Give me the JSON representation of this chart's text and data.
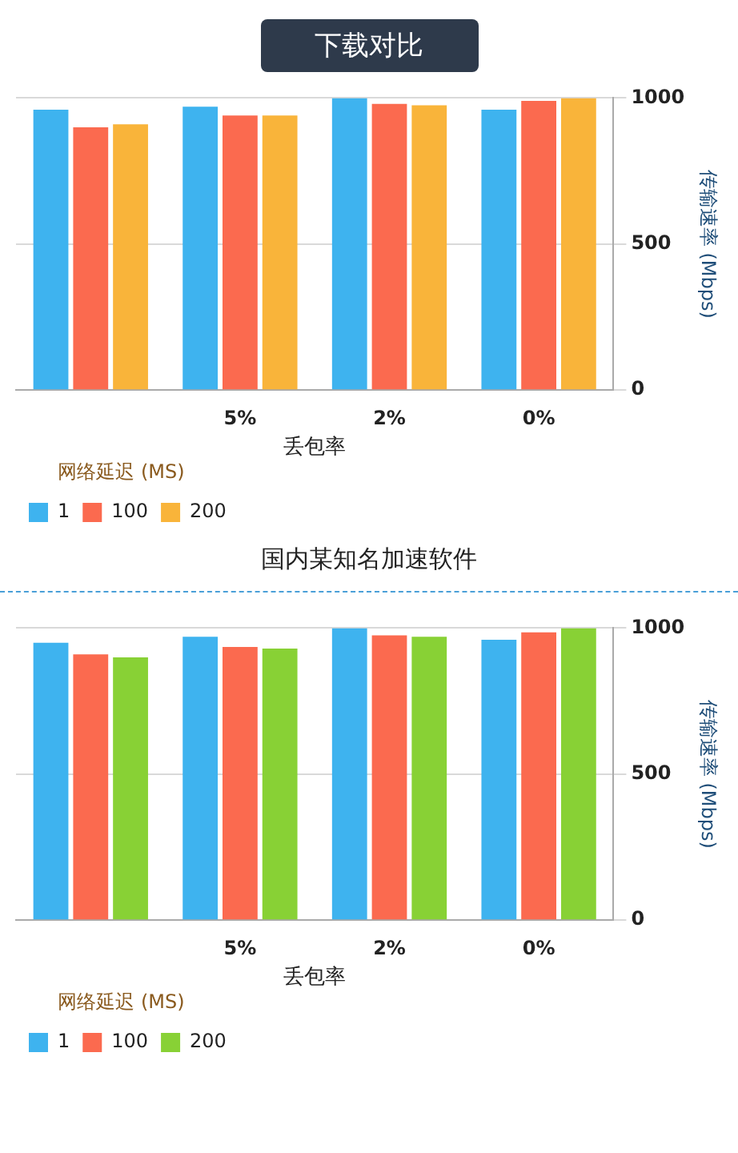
{
  "chart_data": [
    {
      "type": "bar",
      "title": "下载对比",
      "annotations": [
        "国内某知名加速软件"
      ],
      "xlabel": "丢包率",
      "ylabel": "传输速率 (Mbps)",
      "legend_title": "网络延迟 (MS)",
      "categories": [
        null,
        "5%",
        "2%",
        "0%"
      ],
      "series": [
        {
          "name": "1",
          "color": "#3eb3ef",
          "values": [
            960,
            970,
            1000,
            960
          ]
        },
        {
          "name": "100",
          "color": "#fb6a4f",
          "values": [
            900,
            940,
            980,
            990
          ]
        },
        {
          "name": "200",
          "color": "#f9b43a",
          "values": [
            910,
            940,
            975,
            1000
          ]
        }
      ],
      "ylim": [
        0,
        1000
      ],
      "yticks": [
        0,
        500,
        1000
      ],
      "grid": "y",
      "legend": "bottom left"
    },
    {
      "type": "bar",
      "xlabel": "丢包率",
      "ylabel": "传输速率 (Mbps)",
      "legend_title": "网络延迟 (MS)",
      "categories": [
        null,
        "5%",
        "2%",
        "0%"
      ],
      "series": [
        {
          "name": "1",
          "color": "#3eb3ef",
          "values": [
            950,
            970,
            1000,
            960
          ]
        },
        {
          "name": "100",
          "color": "#fb6a4f",
          "values": [
            910,
            935,
            975,
            985
          ]
        },
        {
          "name": "200",
          "color": "#88d135",
          "values": [
            900,
            930,
            970,
            1000
          ]
        }
      ],
      "ylim": [
        0,
        1000
      ],
      "yticks": [
        0,
        500,
        1000
      ],
      "grid": "y",
      "legend": "bottom left"
    }
  ]
}
